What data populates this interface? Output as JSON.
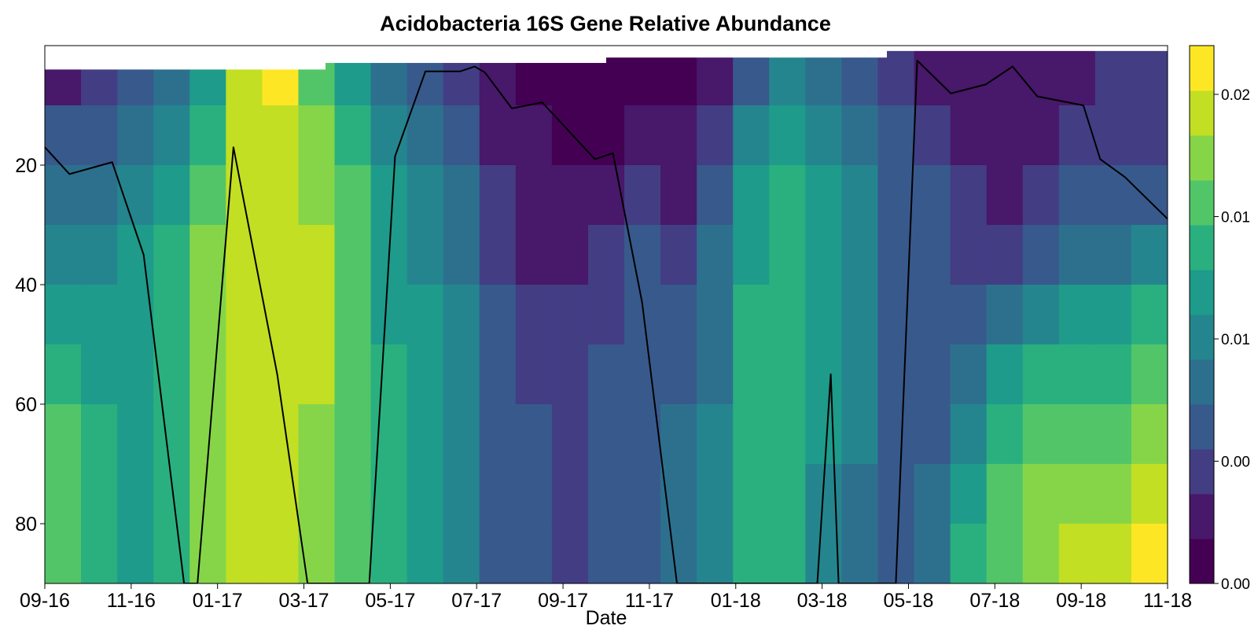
{
  "chart_data": {
    "type": "heatmap",
    "title": "Acidobacteria 16S Gene Relative Abundance",
    "xlabel": "Date",
    "ylabel": "",
    "x_tick_labels": [
      "09-16",
      "11-16",
      "01-17",
      "03-17",
      "05-17",
      "07-17",
      "09-17",
      "11-17",
      "01-18",
      "03-18",
      "05-18",
      "07-18",
      "09-18",
      "11-18"
    ],
    "x_range": [
      "2016-09",
      "2018-11"
    ],
    "y_range": [
      0,
      90
    ],
    "y_reversed": true,
    "y_ticks": [
      20,
      40,
      60,
      80
    ],
    "colorbar": {
      "tick_labels": [
        "0.00",
        "0.00",
        "0.01",
        "0.01",
        "0.02"
      ],
      "range": [
        0.0,
        0.022
      ],
      "n_levels": 11,
      "level_colors": [
        "#440154",
        "#48186a",
        "#433d84",
        "#38598c",
        "#2d708e",
        "#25858e",
        "#1e9b8a",
        "#2ab07f",
        "#52c569",
        "#86d549",
        "#c2df23",
        "#fde725"
      ]
    },
    "grid": false,
    "legend": "colorbar-right",
    "line_series": {
      "color": "#000000",
      "x": [
        0.0,
        0.03,
        0.075,
        0.109,
        0.134,
        0.147,
        0.162,
        0.176,
        0.19,
        0.207,
        0.226,
        0.233,
        0.25,
        0.263,
        0.273,
        0.291,
        0.314,
        0.325,
        0.33,
        0.334,
        0.356,
        0.375,
        0.39,
        0.41,
        0.44,
        0.46,
        0.476,
        0.489,
        0.512,
        0.52,
        0.549,
        0.594,
        0.655,
        0.693,
        0.695,
        0.698,
        0.702,
        0.743,
        0.775,
        0.782,
        0.806,
        0.846,
        0.861,
        0.898,
        0.958,
        0.978,
        1.0
      ],
      "y": [
        18,
        21.5,
        19.5,
        35,
        75,
        90,
        90,
        75,
        17,
        55,
        90,
        90,
        90,
        90,
        90,
        90,
        90,
        90,
        90,
        90,
        90,
        90,
        90,
        90,
        90,
        90,
        90,
        90,
        90,
        90,
        90,
        90,
        90,
        90,
        90,
        90,
        90,
        90,
        90,
        90,
        90,
        90,
        90,
        90,
        90,
        90,
        90
      ],
      "note_points": [
        [
          0.0,
          17
        ],
        [
          0.022,
          21.5
        ],
        [
          0.06,
          19.5
        ],
        [
          0.088,
          35
        ],
        [
          0.124,
          90
        ],
        [
          0.136,
          90
        ],
        [
          0.168,
          17
        ],
        [
          0.207,
          55
        ],
        [
          0.234,
          90
        ],
        [
          0.289,
          90
        ],
        [
          0.312,
          18.5
        ],
        [
          0.339,
          4.3
        ],
        [
          0.37,
          4.3
        ],
        [
          0.383,
          3.5
        ],
        [
          0.392,
          4.5
        ],
        [
          0.416,
          10.5
        ],
        [
          0.443,
          9.5
        ],
        [
          0.49,
          19
        ],
        [
          0.506,
          18
        ],
        [
          0.532,
          43
        ],
        [
          0.563,
          90
        ],
        [
          0.688,
          90
        ],
        [
          0.7,
          55
        ],
        [
          0.707,
          90
        ],
        [
          0.758,
          90
        ],
        [
          0.777,
          2.5
        ],
        [
          0.807,
          8
        ],
        [
          0.838,
          6.5
        ],
        [
          0.862,
          3.5
        ],
        [
          0.884,
          8.5
        ],
        [
          0.925,
          10
        ],
        [
          0.94,
          19
        ],
        [
          0.962,
          22
        ],
        [
          1.0,
          29
        ]
      ]
    }
  }
}
